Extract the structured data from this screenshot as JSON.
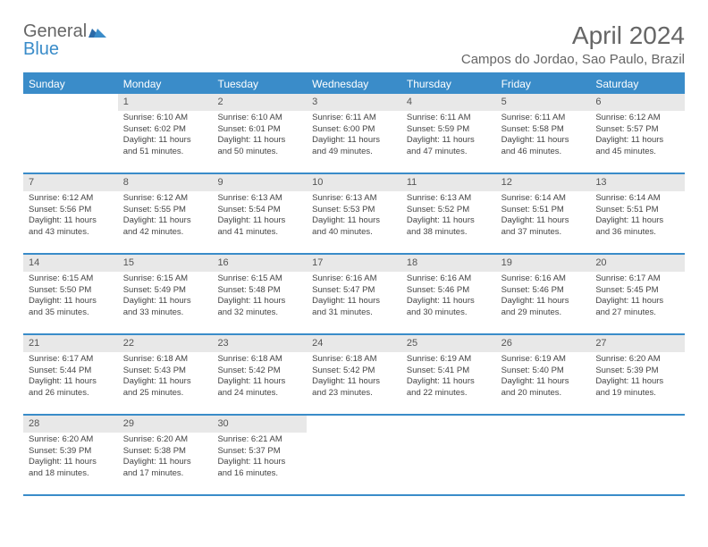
{
  "logo": {
    "text_general": "General",
    "text_blue": "Blue"
  },
  "title": "April 2024",
  "location": "Campos do Jordao, Sao Paulo, Brazil",
  "colors": {
    "accent": "#3a8cc9",
    "header_text": "#ffffff",
    "daynum_bg": "#e8e8e8",
    "body_text": "#444444",
    "page_bg": "#ffffff"
  },
  "day_names": [
    "Sunday",
    "Monday",
    "Tuesday",
    "Wednesday",
    "Thursday",
    "Friday",
    "Saturday"
  ],
  "weeks": [
    [
      {
        "day": "",
        "sunrise": "",
        "sunset": "",
        "daylight": ""
      },
      {
        "day": "1",
        "sunrise": "Sunrise: 6:10 AM",
        "sunset": "Sunset: 6:02 PM",
        "daylight": "Daylight: 11 hours and 51 minutes."
      },
      {
        "day": "2",
        "sunrise": "Sunrise: 6:10 AM",
        "sunset": "Sunset: 6:01 PM",
        "daylight": "Daylight: 11 hours and 50 minutes."
      },
      {
        "day": "3",
        "sunrise": "Sunrise: 6:11 AM",
        "sunset": "Sunset: 6:00 PM",
        "daylight": "Daylight: 11 hours and 49 minutes."
      },
      {
        "day": "4",
        "sunrise": "Sunrise: 6:11 AM",
        "sunset": "Sunset: 5:59 PM",
        "daylight": "Daylight: 11 hours and 47 minutes."
      },
      {
        "day": "5",
        "sunrise": "Sunrise: 6:11 AM",
        "sunset": "Sunset: 5:58 PM",
        "daylight": "Daylight: 11 hours and 46 minutes."
      },
      {
        "day": "6",
        "sunrise": "Sunrise: 6:12 AM",
        "sunset": "Sunset: 5:57 PM",
        "daylight": "Daylight: 11 hours and 45 minutes."
      }
    ],
    [
      {
        "day": "7",
        "sunrise": "Sunrise: 6:12 AM",
        "sunset": "Sunset: 5:56 PM",
        "daylight": "Daylight: 11 hours and 43 minutes."
      },
      {
        "day": "8",
        "sunrise": "Sunrise: 6:12 AM",
        "sunset": "Sunset: 5:55 PM",
        "daylight": "Daylight: 11 hours and 42 minutes."
      },
      {
        "day": "9",
        "sunrise": "Sunrise: 6:13 AM",
        "sunset": "Sunset: 5:54 PM",
        "daylight": "Daylight: 11 hours and 41 minutes."
      },
      {
        "day": "10",
        "sunrise": "Sunrise: 6:13 AM",
        "sunset": "Sunset: 5:53 PM",
        "daylight": "Daylight: 11 hours and 40 minutes."
      },
      {
        "day": "11",
        "sunrise": "Sunrise: 6:13 AM",
        "sunset": "Sunset: 5:52 PM",
        "daylight": "Daylight: 11 hours and 38 minutes."
      },
      {
        "day": "12",
        "sunrise": "Sunrise: 6:14 AM",
        "sunset": "Sunset: 5:51 PM",
        "daylight": "Daylight: 11 hours and 37 minutes."
      },
      {
        "day": "13",
        "sunrise": "Sunrise: 6:14 AM",
        "sunset": "Sunset: 5:51 PM",
        "daylight": "Daylight: 11 hours and 36 minutes."
      }
    ],
    [
      {
        "day": "14",
        "sunrise": "Sunrise: 6:15 AM",
        "sunset": "Sunset: 5:50 PM",
        "daylight": "Daylight: 11 hours and 35 minutes."
      },
      {
        "day": "15",
        "sunrise": "Sunrise: 6:15 AM",
        "sunset": "Sunset: 5:49 PM",
        "daylight": "Daylight: 11 hours and 33 minutes."
      },
      {
        "day": "16",
        "sunrise": "Sunrise: 6:15 AM",
        "sunset": "Sunset: 5:48 PM",
        "daylight": "Daylight: 11 hours and 32 minutes."
      },
      {
        "day": "17",
        "sunrise": "Sunrise: 6:16 AM",
        "sunset": "Sunset: 5:47 PM",
        "daylight": "Daylight: 11 hours and 31 minutes."
      },
      {
        "day": "18",
        "sunrise": "Sunrise: 6:16 AM",
        "sunset": "Sunset: 5:46 PM",
        "daylight": "Daylight: 11 hours and 30 minutes."
      },
      {
        "day": "19",
        "sunrise": "Sunrise: 6:16 AM",
        "sunset": "Sunset: 5:46 PM",
        "daylight": "Daylight: 11 hours and 29 minutes."
      },
      {
        "day": "20",
        "sunrise": "Sunrise: 6:17 AM",
        "sunset": "Sunset: 5:45 PM",
        "daylight": "Daylight: 11 hours and 27 minutes."
      }
    ],
    [
      {
        "day": "21",
        "sunrise": "Sunrise: 6:17 AM",
        "sunset": "Sunset: 5:44 PM",
        "daylight": "Daylight: 11 hours and 26 minutes."
      },
      {
        "day": "22",
        "sunrise": "Sunrise: 6:18 AM",
        "sunset": "Sunset: 5:43 PM",
        "daylight": "Daylight: 11 hours and 25 minutes."
      },
      {
        "day": "23",
        "sunrise": "Sunrise: 6:18 AM",
        "sunset": "Sunset: 5:42 PM",
        "daylight": "Daylight: 11 hours and 24 minutes."
      },
      {
        "day": "24",
        "sunrise": "Sunrise: 6:18 AM",
        "sunset": "Sunset: 5:42 PM",
        "daylight": "Daylight: 11 hours and 23 minutes."
      },
      {
        "day": "25",
        "sunrise": "Sunrise: 6:19 AM",
        "sunset": "Sunset: 5:41 PM",
        "daylight": "Daylight: 11 hours and 22 minutes."
      },
      {
        "day": "26",
        "sunrise": "Sunrise: 6:19 AM",
        "sunset": "Sunset: 5:40 PM",
        "daylight": "Daylight: 11 hours and 20 minutes."
      },
      {
        "day": "27",
        "sunrise": "Sunrise: 6:20 AM",
        "sunset": "Sunset: 5:39 PM",
        "daylight": "Daylight: 11 hours and 19 minutes."
      }
    ],
    [
      {
        "day": "28",
        "sunrise": "Sunrise: 6:20 AM",
        "sunset": "Sunset: 5:39 PM",
        "daylight": "Daylight: 11 hours and 18 minutes."
      },
      {
        "day": "29",
        "sunrise": "Sunrise: 6:20 AM",
        "sunset": "Sunset: 5:38 PM",
        "daylight": "Daylight: 11 hours and 17 minutes."
      },
      {
        "day": "30",
        "sunrise": "Sunrise: 6:21 AM",
        "sunset": "Sunset: 5:37 PM",
        "daylight": "Daylight: 11 hours and 16 minutes."
      },
      {
        "day": "",
        "sunrise": "",
        "sunset": "",
        "daylight": ""
      },
      {
        "day": "",
        "sunrise": "",
        "sunset": "",
        "daylight": ""
      },
      {
        "day": "",
        "sunrise": "",
        "sunset": "",
        "daylight": ""
      },
      {
        "day": "",
        "sunrise": "",
        "sunset": "",
        "daylight": ""
      }
    ]
  ]
}
